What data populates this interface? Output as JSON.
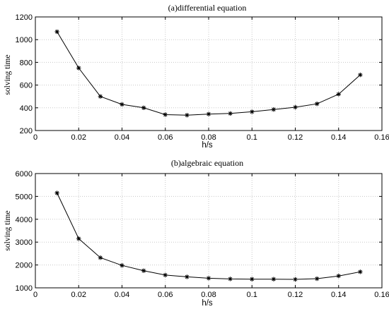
{
  "chart_data": [
    {
      "type": "line",
      "title": "(a)differential equation",
      "xlabel": "h/s",
      "ylabel": "solving time",
      "xlim": [
        0,
        0.16
      ],
      "ylim": [
        200,
        1200
      ],
      "xticks": [
        0,
        0.02,
        0.04,
        0.06,
        0.08,
        0.1,
        0.12,
        0.14,
        0.16
      ],
      "xtick_labels": [
        "0",
        "0.02",
        "0.04",
        "0.06",
        "0.08",
        "0.1",
        "0.12",
        "0.14",
        "0.16"
      ],
      "yticks": [
        200,
        400,
        600,
        800,
        1000,
        1200
      ],
      "ytick_labels": [
        "200",
        "400",
        "600",
        "800",
        "1000",
        "1200"
      ],
      "grid": true,
      "marker": "asterisk",
      "line_color": "#000000",
      "series": [
        {
          "x": [
            0.01,
            0.02,
            0.03,
            0.04,
            0.05,
            0.06,
            0.07,
            0.08,
            0.09,
            0.1,
            0.11,
            0.12,
            0.13,
            0.14,
            0.15
          ],
          "values": [
            1070,
            750,
            500,
            430,
            400,
            340,
            335,
            345,
            350,
            365,
            385,
            405,
            435,
            520,
            690
          ]
        }
      ]
    },
    {
      "type": "line",
      "title": "(b)algebraic equation",
      "xlabel": "h/s",
      "ylabel": "solving time",
      "xlim": [
        0,
        0.16
      ],
      "ylim": [
        1000,
        6000
      ],
      "xticks": [
        0,
        0.02,
        0.04,
        0.06,
        0.08,
        0.1,
        0.12,
        0.14,
        0.16
      ],
      "xtick_labels": [
        "0",
        "0.02",
        "0.04",
        "0.06",
        "0.08",
        "0.1",
        "0.12",
        "0.14",
        "0.16"
      ],
      "yticks": [
        1000,
        2000,
        3000,
        4000,
        5000,
        6000
      ],
      "ytick_labels": [
        "1000",
        "2000",
        "3000",
        "4000",
        "5000",
        "6000"
      ],
      "grid": true,
      "marker": "asterisk",
      "line_color": "#000000",
      "series": [
        {
          "x": [
            0.01,
            0.02,
            0.03,
            0.04,
            0.05,
            0.06,
            0.07,
            0.08,
            0.09,
            0.1,
            0.11,
            0.12,
            0.13,
            0.14,
            0.15
          ],
          "values": [
            5150,
            3150,
            2320,
            1980,
            1750,
            1560,
            1480,
            1420,
            1390,
            1380,
            1380,
            1370,
            1400,
            1520,
            1700
          ]
        }
      ]
    }
  ]
}
